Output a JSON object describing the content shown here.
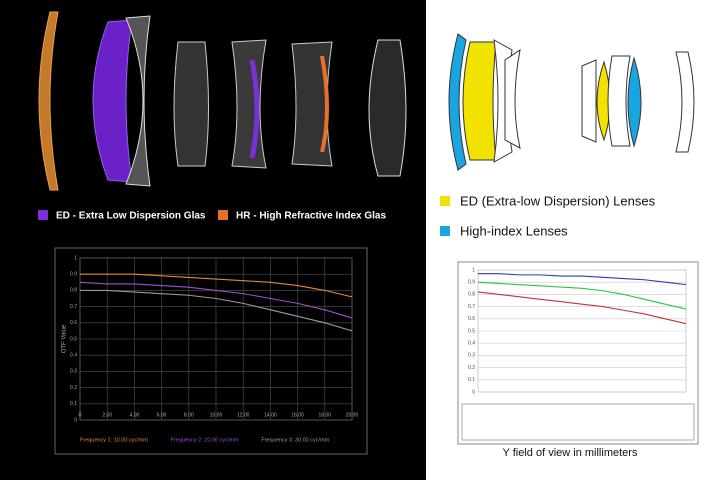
{
  "left_panel": {
    "legend": [
      {
        "label": "ED - Extra Low Dispersion Glas",
        "color": "#7b2fd6"
      },
      {
        "label": "HR - High Refractive Index Glas",
        "color": "#e8712a"
      }
    ]
  },
  "right_panel": {
    "legend": [
      {
        "label": "ED (Extra-low Dispersion) Lenses",
        "color": "#f2e200"
      },
      {
        "label": "High-index Lenses",
        "color": "#1ba5e0"
      }
    ],
    "caption": "Y field of view in millimeters"
  },
  "chart_data": [
    {
      "type": "line",
      "y_label": "OTF Value",
      "x": [
        0,
        2,
        4,
        6,
        8,
        10,
        12,
        14,
        16,
        18,
        20
      ],
      "xlim": [
        0,
        20
      ],
      "xticks": [
        0,
        {
          "value": 2,
          "label": "2.00"
        },
        {
          "value": 4,
          "label": "4.00"
        },
        {
          "value": 6,
          "label": "6.00"
        },
        {
          "value": 8,
          "label": "8.00"
        },
        {
          "value": 10,
          "label": "10.00"
        },
        {
          "value": 12,
          "label": "12.00"
        },
        {
          "value": 14,
          "label": "14.00"
        },
        {
          "value": 16,
          "label": "16.00"
        },
        {
          "value": 18,
          "label": "18.00"
        },
        {
          "value": 20,
          "label": "20.00"
        }
      ],
      "ylim": [
        0,
        1
      ],
      "yticks": [
        0,
        0.1,
        0.2,
        0.3,
        0.4,
        0.5,
        0.6,
        0.7,
        0.8,
        0.9,
        1
      ],
      "grid": true,
      "series": [
        {
          "name": "Frequency 1:  10.00  cyc/mm",
          "color": "#e8873a",
          "values": [
            0.9,
            0.9,
            0.9,
            0.89,
            0.88,
            0.87,
            0.86,
            0.85,
            0.83,
            0.8,
            0.76
          ]
        },
        {
          "name": "Frequency 2:  20.00  cyc/mm",
          "color": "#9b4fd6",
          "values": [
            0.85,
            0.84,
            0.84,
            0.83,
            0.82,
            0.8,
            0.78,
            0.75,
            0.72,
            0.68,
            0.63
          ]
        },
        {
          "name": "Frequency 3:  30.00  cyc/mm",
          "color": "#9a9a9a",
          "values": [
            0.8,
            0.8,
            0.79,
            0.78,
            0.77,
            0.75,
            0.72,
            0.68,
            0.64,
            0.6,
            0.55
          ]
        }
      ]
    },
    {
      "type": "line",
      "x": [
        0,
        1,
        2,
        3,
        4,
        5,
        6,
        7,
        8,
        9,
        10
      ],
      "xlim": [
        0,
        10
      ],
      "ylim": [
        0,
        1
      ],
      "yticks": [
        0,
        0.1,
        0.2,
        0.3,
        0.4,
        0.5,
        0.6,
        0.7,
        0.8,
        0.9,
        1
      ],
      "grid": true,
      "series": [
        {
          "color": "#2b3bb0",
          "values": [
            0.97,
            0.97,
            0.96,
            0.96,
            0.95,
            0.95,
            0.94,
            0.93,
            0.92,
            0.9,
            0.88
          ]
        },
        {
          "color": "#2fc24a",
          "values": [
            0.9,
            0.89,
            0.88,
            0.87,
            0.86,
            0.85,
            0.83,
            0.8,
            0.76,
            0.72,
            0.68
          ]
        },
        {
          "color": "#c8333a",
          "values": [
            0.82,
            0.8,
            0.78,
            0.76,
            0.74,
            0.72,
            0.7,
            0.67,
            0.64,
            0.6,
            0.56
          ]
        }
      ]
    }
  ]
}
